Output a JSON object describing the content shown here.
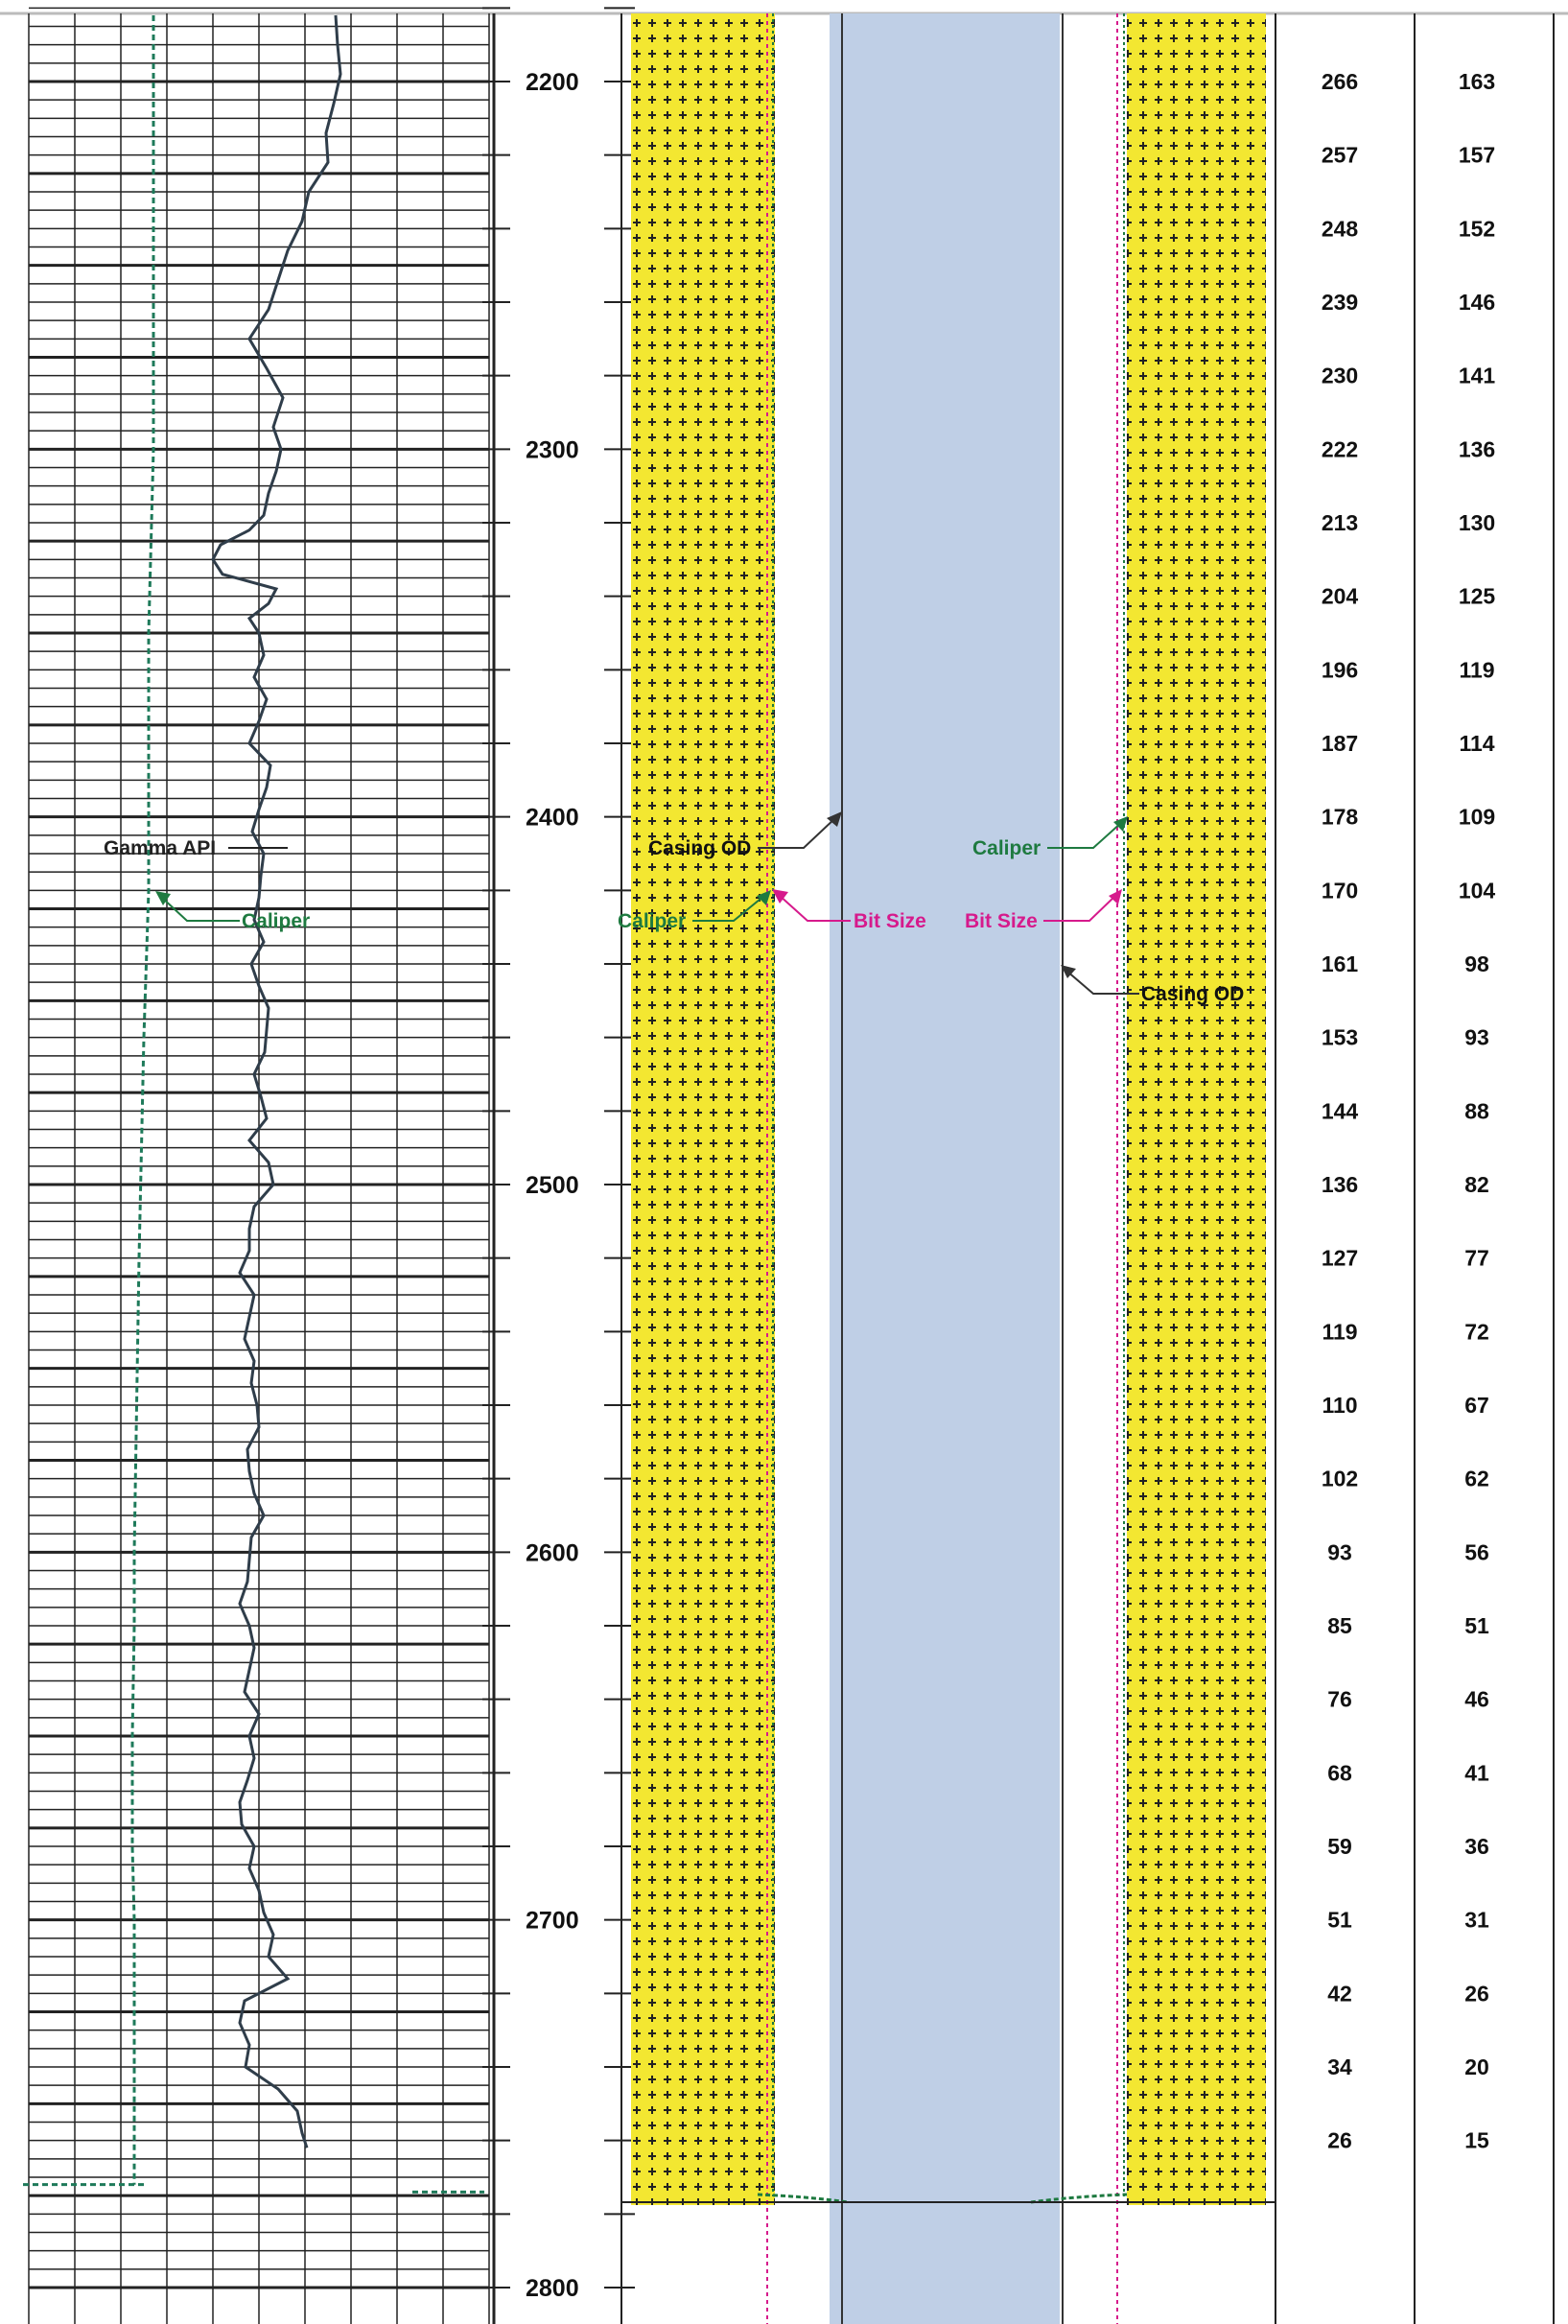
{
  "chart_data": {
    "type": "line",
    "x_axis": "depth",
    "depth_range": [
      2180,
      2800
    ],
    "depth_ticks": [
      "2200",
      "2300",
      "2400",
      "2500",
      "2600",
      "2700",
      "2800"
    ],
    "legend": {
      "gamma_label": "Gamma API",
      "caliper_label": "Caliper",
      "casing_od_label": "Casing OD",
      "bit_size_label": "Bit Size"
    },
    "columns": [
      {
        "depths": [
          2200,
          2220,
          2240,
          2260,
          2280,
          2300,
          2320,
          2340,
          2360,
          2380,
          2400,
          2420,
          2440,
          2460,
          2480,
          2500,
          2520,
          2540,
          2560,
          2580,
          2600,
          2620,
          2640,
          2660,
          2680,
          2700,
          2720,
          2740,
          2760
        ],
        "values": [
          "266",
          "257",
          "248",
          "239",
          "230",
          "222",
          "213",
          "204",
          "196",
          "187",
          "178",
          "170",
          "161",
          "153",
          "144",
          "136",
          "127",
          "119",
          "110",
          "102",
          "93",
          "85",
          "76",
          "68",
          "59",
          "51",
          "42",
          "34",
          "26"
        ]
      },
      {
        "depths": [
          2200,
          2220,
          2240,
          2260,
          2280,
          2300,
          2320,
          2340,
          2360,
          2380,
          2400,
          2420,
          2440,
          2460,
          2480,
          2500,
          2520,
          2540,
          2560,
          2580,
          2600,
          2620,
          2640,
          2660,
          2680,
          2700,
          2720,
          2740,
          2760
        ],
        "values": [
          "163",
          "157",
          "152",
          "146",
          "141",
          "136",
          "130",
          "125",
          "119",
          "114",
          "109",
          "104",
          "98",
          "93",
          "88",
          "82",
          "77",
          "72",
          "67",
          "62",
          "56",
          "51",
          "46",
          "41",
          "36",
          "31",
          "26",
          "20",
          "15"
        ]
      }
    ],
    "gamma_series": {
      "depths": [
        2182,
        2190,
        2198,
        2206,
        2214,
        2222,
        2230,
        2238,
        2246,
        2254,
        2262,
        2270,
        2278,
        2286,
        2294,
        2300,
        2306,
        2312,
        2318,
        2322,
        2326,
        2330,
        2334,
        2338,
        2342,
        2346,
        2350,
        2356,
        2362,
        2368,
        2374,
        2380,
        2386,
        2392,
        2398,
        2404,
        2410,
        2416,
        2422,
        2428,
        2434,
        2440,
        2446,
        2452,
        2458,
        2464,
        2470,
        2476,
        2482,
        2488,
        2494,
        2500,
        2506,
        2512,
        2518,
        2524,
        2530,
        2536,
        2542,
        2548,
        2554,
        2560,
        2566,
        2572,
        2578,
        2584,
        2590,
        2596,
        2602,
        2608,
        2614,
        2620,
        2626,
        2632,
        2638,
        2644,
        2650,
        2656,
        2662,
        2668,
        2674,
        2680,
        2686,
        2692,
        2698,
        2704,
        2710,
        2716,
        2722,
        2728,
        2734,
        2740,
        2746,
        2752,
        2758,
        2762
      ],
      "values": [
        390,
        392,
        395,
        388,
        380,
        382,
        362,
        355,
        340,
        330,
        320,
        300,
        318,
        335,
        325,
        333,
        328,
        320,
        315,
        300,
        270,
        262,
        272,
        328,
        320,
        300,
        310,
        315,
        305,
        318,
        310,
        300,
        322,
        318,
        310,
        303,
        315,
        312,
        310,
        305,
        315,
        302,
        310,
        320,
        318,
        316,
        305,
        312,
        318,
        300,
        320,
        325,
        305,
        300,
        300,
        290,
        305,
        300,
        295,
        305,
        302,
        308,
        310,
        298,
        300,
        305,
        315,
        302,
        300,
        298,
        290,
        300,
        305,
        300,
        295,
        310,
        300,
        305,
        298,
        290,
        292,
        305,
        300,
        310,
        315,
        325,
        320,
        340,
        295,
        290,
        300,
        296,
        330,
        350,
        355,
        360
      ]
    },
    "caliper_series": {
      "depths": [
        2182,
        2300,
        2350,
        2420,
        2460,
        2520,
        2600,
        2620,
        2650,
        2680,
        2700,
        2762,
        2772
      ],
      "values": [
        180,
        180,
        175,
        175,
        170,
        165,
        160,
        160,
        158,
        158,
        160,
        160,
        160
      ]
    },
    "well_schematic": {
      "formation_top_depth": 2180,
      "formation_bottom_depth": 2776,
      "formation_color": "#f3e731",
      "annulus_color": "#ffffff",
      "casing_color": "#bfcfe6"
    }
  }
}
